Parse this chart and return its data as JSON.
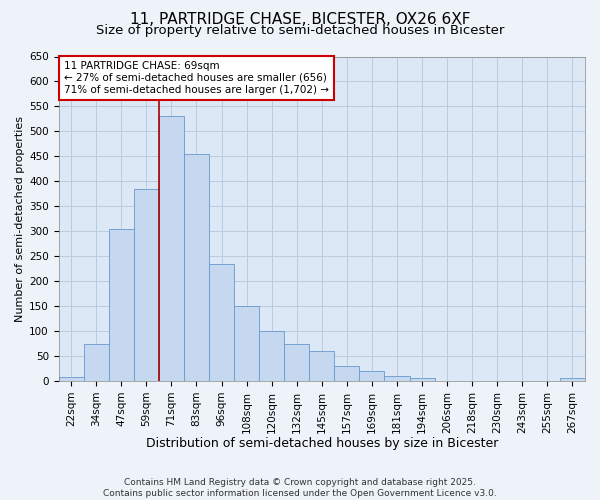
{
  "title": "11, PARTRIDGE CHASE, BICESTER, OX26 6XF",
  "subtitle": "Size of property relative to semi-detached houses in Bicester",
  "xlabel": "Distribution of semi-detached houses by size in Bicester",
  "ylabel": "Number of semi-detached properties",
  "bar_color": "#c5d8f0",
  "bar_edge_color": "#6699cc",
  "background_color": "#dce8f5",
  "grid_color": "#b8cce0",
  "categories": [
    "22sqm",
    "34sqm",
    "47sqm",
    "59sqm",
    "71sqm",
    "83sqm",
    "96sqm",
    "108sqm",
    "120sqm",
    "132sqm",
    "145sqm",
    "157sqm",
    "169sqm",
    "181sqm",
    "194sqm",
    "206sqm",
    "218sqm",
    "230sqm",
    "243sqm",
    "255sqm",
    "267sqm"
  ],
  "values": [
    8,
    75,
    305,
    385,
    530,
    455,
    235,
    150,
    100,
    75,
    60,
    30,
    20,
    10,
    5,
    0,
    0,
    0,
    0,
    0,
    5
  ],
  "ylim": [
    0,
    650
  ],
  "yticks": [
    0,
    50,
    100,
    150,
    200,
    250,
    300,
    350,
    400,
    450,
    500,
    550,
    600,
    650
  ],
  "vline_bin_index": 4,
  "vline_color": "#aa0000",
  "annotation_text": "11 PARTRIDGE CHASE: 69sqm\n← 27% of semi-detached houses are smaller (656)\n71% of semi-detached houses are larger (1,702) →",
  "annotation_box_facecolor": "#ffffff",
  "annotation_box_edgecolor": "#cc0000",
  "footer_text": "Contains HM Land Registry data © Crown copyright and database right 2025.\nContains public sector information licensed under the Open Government Licence v3.0.",
  "title_fontsize": 11,
  "subtitle_fontsize": 9.5,
  "xlabel_fontsize": 9,
  "ylabel_fontsize": 8,
  "tick_fontsize": 7.5,
  "annotation_fontsize": 7.5,
  "footer_fontsize": 6.5,
  "fig_facecolor": "#eef3fa"
}
